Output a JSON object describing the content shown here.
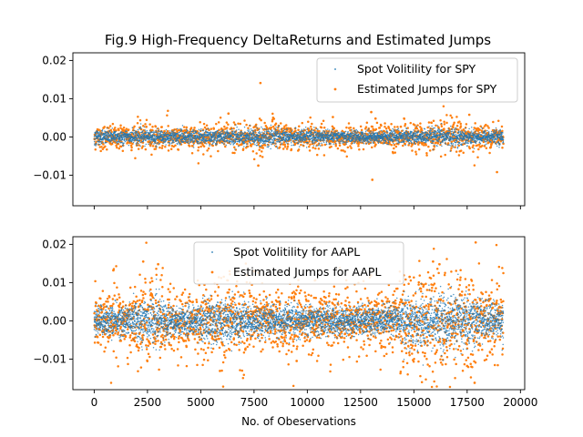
{
  "chart_data": {
    "type": "scatter",
    "title": "Fig.9 High-Frequency DeltaReturns and Estimated Jumps",
    "xlabel": "No. of Obeservations",
    "xlim": [
      -1000,
      20200
    ],
    "xticks": [
      0,
      2500,
      5000,
      7500,
      10000,
      12500,
      15000,
      17500,
      20000
    ],
    "xtick_labels": [
      "0",
      "2500",
      "5000",
      "7500",
      "10000",
      "12500",
      "15000",
      "17500",
      "20000"
    ],
    "colors": {
      "volatility": "#1f77b4",
      "jumps": "#ff7f0e"
    },
    "n_observations": 19200,
    "panels": [
      {
        "id": "spy",
        "ylim": [
          -0.018,
          0.022
        ],
        "yticks": [
          -0.01,
          0.0,
          0.01,
          0.02
        ],
        "ytick_labels": [
          "−0.01",
          "0.00",
          "0.01",
          "0.02"
        ],
        "legend_position": "upper right",
        "series": [
          {
            "name": "Spot Volitility for SPY",
            "marker": "small-dot",
            "typical_abs_range": [
              -0.0025,
              0.0025
            ]
          },
          {
            "name": "Estimated Jumps for SPY",
            "marker": "dot",
            "typical_abs_range": [
              -0.004,
              0.004
            ]
          }
        ],
        "outliers": [
          {
            "series": 1,
            "x": 7800,
            "y": 0.0141
          },
          {
            "series": 1,
            "x": 13050,
            "y": -0.0112
          },
          {
            "series": 1,
            "x": 13000,
            "y": 0.0065
          },
          {
            "series": 1,
            "x": 18900,
            "y": -0.0092
          },
          {
            "series": 1,
            "x": 7700,
            "y": -0.0075
          },
          {
            "series": 1,
            "x": 17600,
            "y": 0.0058
          },
          {
            "series": 1,
            "x": 13200,
            "y": 0.0048
          },
          {
            "series": 1,
            "x": 6300,
            "y": 0.0061
          },
          {
            "series": 1,
            "x": 11200,
            "y": 0.0052
          }
        ]
      },
      {
        "id": "aapl",
        "ylim": [
          -0.018,
          0.022
        ],
        "yticks": [
          -0.01,
          0.0,
          0.01,
          0.02
        ],
        "ytick_labels": [
          "−0.01",
          "0.00",
          "0.01",
          "0.02"
        ],
        "legend_position": "upper center",
        "series": [
          {
            "name": "Spot Volitility for AAPL",
            "marker": "small-dot",
            "typical_abs_range": [
              -0.006,
              0.006
            ]
          },
          {
            "name": "Estimated Jumps for AAPL",
            "marker": "dot",
            "typical_abs_range": [
              -0.012,
              0.012
            ]
          }
        ],
        "outliers": [
          {
            "series": 1,
            "x": 17900,
            "y": 0.0205
          },
          {
            "series": 1,
            "x": 17850,
            "y": -0.0162
          },
          {
            "series": 1,
            "x": 2300,
            "y": 0.0155
          },
          {
            "series": 1,
            "x": 3000,
            "y": 0.0148
          },
          {
            "series": 1,
            "x": 5900,
            "y": -0.0131
          },
          {
            "series": 1,
            "x": 15900,
            "y": 0.0155
          },
          {
            "series": 1,
            "x": 17500,
            "y": -0.0118
          },
          {
            "series": 1,
            "x": 13000,
            "y": 0.0119
          },
          {
            "series": 1,
            "x": 900,
            "y": 0.0132
          },
          {
            "series": 1,
            "x": 7500,
            "y": 0.013
          },
          {
            "series": 1,
            "x": 16200,
            "y": 0.0148
          },
          {
            "series": 1,
            "x": 14800,
            "y": 0.0115
          },
          {
            "series": 1,
            "x": 9500,
            "y": -0.0105
          }
        ]
      }
    ]
  }
}
